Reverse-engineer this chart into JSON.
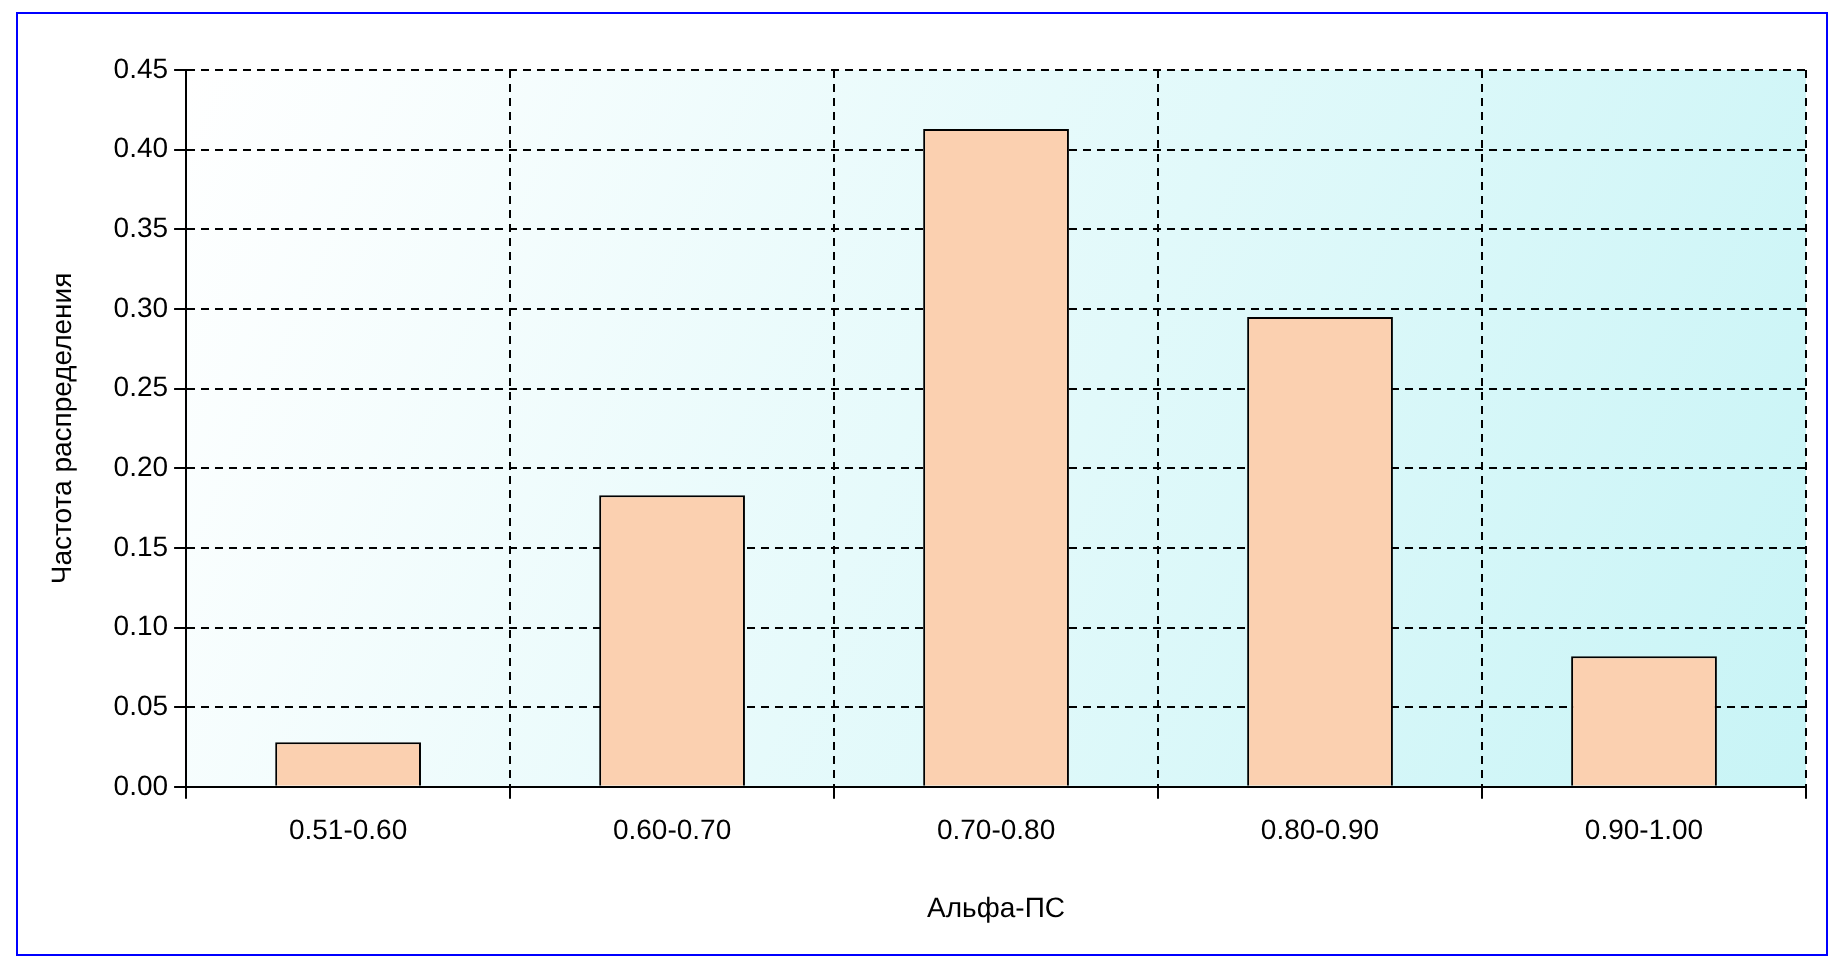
{
  "chart_data": {
    "type": "bar",
    "xlabel": "Альфа-ПС",
    "ylabel": "Частота распределения",
    "categories": [
      "0.51-0.60",
      "0.60-0.70",
      "0.70-0.80",
      "0.80-0.90",
      "0.90-1.00"
    ],
    "values": [
      0.028,
      0.183,
      0.413,
      0.295,
      0.082
    ],
    "color": "#fbd0b0",
    "ylim": [
      0,
      0.45
    ],
    "yticks": [
      {
        "value": 0,
        "label": "0.00"
      },
      {
        "value": 0.05,
        "label": "0.05"
      },
      {
        "value": 0.1,
        "label": "0.10"
      },
      {
        "value": 0.15,
        "label": "0.15"
      },
      {
        "value": 0.2,
        "label": "0.20"
      },
      {
        "value": 0.25,
        "label": "0.25"
      },
      {
        "value": 0.3,
        "label": "0.30"
      },
      {
        "value": 0.35,
        "label": "0.35"
      },
      {
        "value": 0.4,
        "label": "0.40"
      },
      {
        "value": 0.45,
        "label": "0.45"
      }
    ],
    "grid": true,
    "legend": false
  }
}
